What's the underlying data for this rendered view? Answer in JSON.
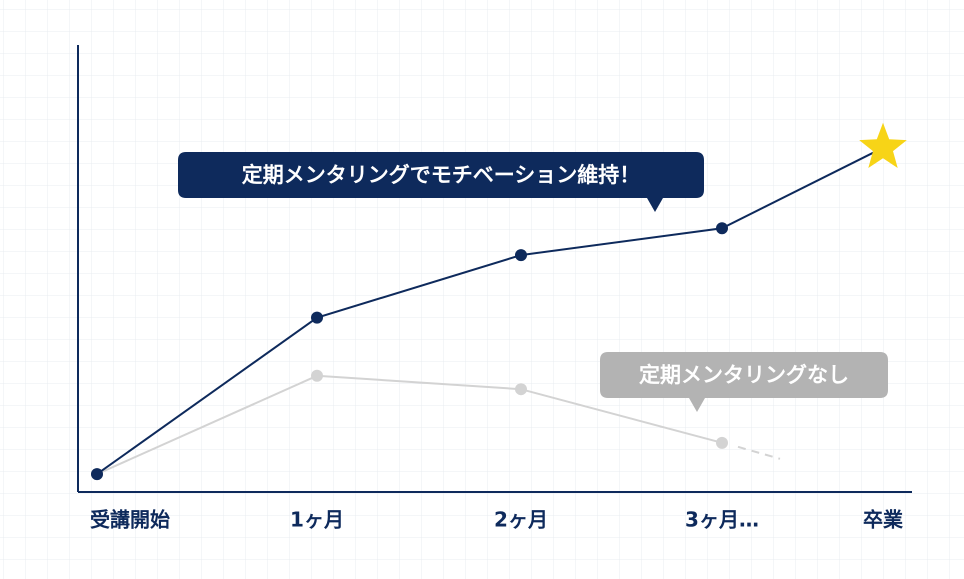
{
  "chart_data": {
    "type": "line",
    "categories": [
      "受講開始",
      "1ヶ月",
      "2ヶ月",
      "3ヶ月…",
      "卒業"
    ],
    "series": [
      {
        "name": "定期メンタリングでモチベーション維持！",
        "color": "#0e2a5c",
        "values": [
          4,
          39,
          53,
          59,
          77
        ]
      },
      {
        "name": "定期メンタリングなし",
        "color": "#d3d3d3",
        "values": [
          4,
          26,
          23,
          11,
          null
        ]
      }
    ],
    "ylim": [
      0,
      100
    ],
    "star_color": "#f7d417"
  }
}
